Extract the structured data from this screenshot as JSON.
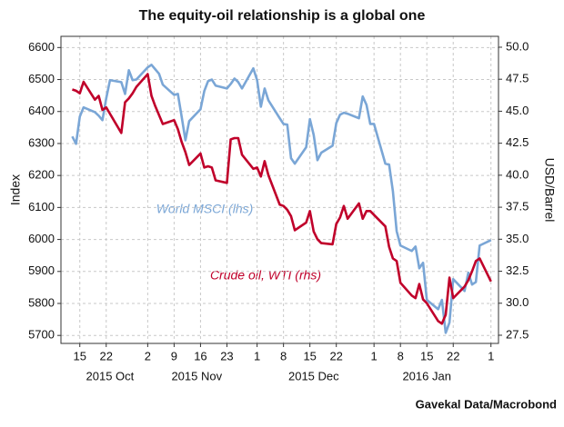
{
  "chart_data": {
    "type": "line",
    "title": "The equity-oil relationship is a global one",
    "ylabel": "Index",
    "y2label": "USD/Barrel",
    "source": "Gavekal Data/Macrobond",
    "annotations": [
      "World MSCI (lhs)",
      "Crude oil, WTI (rhs)"
    ],
    "grid": true,
    "x": [
      "2015-10-13",
      "2015-10-14",
      "2015-10-15",
      "2015-10-16",
      "2015-10-19",
      "2015-10-20",
      "2015-10-21",
      "2015-10-22",
      "2015-10-23",
      "2015-10-26",
      "2015-10-27",
      "2015-10-28",
      "2015-10-29",
      "2015-10-30",
      "2015-11-02",
      "2015-11-03",
      "2015-11-04",
      "2015-11-05",
      "2015-11-06",
      "2015-11-09",
      "2015-11-10",
      "2015-11-11",
      "2015-11-12",
      "2015-11-13",
      "2015-11-16",
      "2015-11-17",
      "2015-11-18",
      "2015-11-19",
      "2015-11-20",
      "2015-11-23",
      "2015-11-24",
      "2015-11-25",
      "2015-11-26",
      "2015-11-27",
      "2015-11-30",
      "2015-12-01",
      "2015-12-02",
      "2015-12-03",
      "2015-12-04",
      "2015-12-07",
      "2015-12-08",
      "2015-12-09",
      "2015-12-10",
      "2015-12-11",
      "2015-12-14",
      "2015-12-15",
      "2015-12-16",
      "2015-12-17",
      "2015-12-18",
      "2015-12-21",
      "2015-12-22",
      "2015-12-23",
      "2015-12-24",
      "2015-12-25",
      "2015-12-28",
      "2015-12-29",
      "2015-12-30",
      "2015-12-31",
      "2016-01-01",
      "2016-01-04",
      "2016-01-05",
      "2016-01-06",
      "2016-01-07",
      "2016-01-08",
      "2016-01-11",
      "2016-01-12",
      "2016-01-13",
      "2016-01-14",
      "2016-01-15",
      "2016-01-18",
      "2016-01-19",
      "2016-01-20",
      "2016-01-21",
      "2016-01-22",
      "2016-01-25",
      "2016-01-26",
      "2016-01-27",
      "2016-01-28",
      "2016-01-29",
      "2016-02-01"
    ],
    "series": [
      {
        "name": "World MSCI (lhs)",
        "color": "#7aa6d6",
        "axis": "y",
        "values": [
          6322,
          6299,
          6384,
          6413,
          6398,
          6387,
          6373,
          6441,
          6498,
          6492,
          6455,
          6529,
          6498,
          6500,
          6538,
          6546,
          6532,
          6518,
          6484,
          6452,
          6455,
          6384,
          6310,
          6370,
          6407,
          6464,
          6495,
          6500,
          6481,
          6472,
          6486,
          6503,
          6492,
          6472,
          6535,
          6498,
          6415,
          6472,
          6435,
          6379,
          6361,
          6359,
          6254,
          6237,
          6288,
          6376,
          6327,
          6248,
          6271,
          6293,
          6364,
          6390,
          6396,
          6393,
          6379,
          6447,
          6421,
          6361,
          6361,
          6237,
          6234,
          6151,
          6026,
          5981,
          5964,
          5978,
          5910,
          5927,
          5811,
          5782,
          5811,
          5708,
          5740,
          5876,
          5839,
          5896,
          5859,
          5867,
          5981,
          5998
        ]
      },
      {
        "name": "Crude oil, WTI (rhs)",
        "color": "#c0002a",
        "axis": "y2",
        "values": [
          46.7,
          46.6,
          46.4,
          47.3,
          45.9,
          46.2,
          45.1,
          45.3,
          44.8,
          43.3,
          45.7,
          46.0,
          46.4,
          46.9,
          47.9,
          46.2,
          45.4,
          44.7,
          44.0,
          44.3,
          43.6,
          42.6,
          41.8,
          40.8,
          41.7,
          40.6,
          40.7,
          40.6,
          39.6,
          39.4,
          42.8,
          42.9,
          42.9,
          41.6,
          40.5,
          40.6,
          39.9,
          41.1,
          40.0,
          37.7,
          37.6,
          37.3,
          36.8,
          35.7,
          36.3,
          37.2,
          35.6,
          35.0,
          34.7,
          34.6,
          36.2,
          36.7,
          37.6,
          36.6,
          37.8,
          36.6,
          37.2,
          37.2,
          36.9,
          36.0,
          34.4,
          33.5,
          33.3,
          31.6,
          30.6,
          30.4,
          31.5,
          30.3,
          30.0,
          28.6,
          28.4,
          29.1,
          32.0,
          30.4,
          31.3,
          31.8,
          32.5,
          33.3,
          33.5,
          31.7
        ]
      }
    ],
    "xlim": [
      "2015-10-10",
      "2016-02-03"
    ],
    "xticks": [
      {
        "value": "2015-10-15",
        "label": "15"
      },
      {
        "value": "2015-10-22",
        "label": "22"
      },
      {
        "value": "2015-11-02",
        "label": "2"
      },
      {
        "value": "2015-11-09",
        "label": "9"
      },
      {
        "value": "2015-11-16",
        "label": "16"
      },
      {
        "value": "2015-11-23",
        "label": "23"
      },
      {
        "value": "2015-12-01",
        "label": "1"
      },
      {
        "value": "2015-12-08",
        "label": "8"
      },
      {
        "value": "2015-12-15",
        "label": "15"
      },
      {
        "value": "2015-12-22",
        "label": "22"
      },
      {
        "value": "2016-01-01",
        "label": "1"
      },
      {
        "value": "2016-01-08",
        "label": "8"
      },
      {
        "value": "2016-01-15",
        "label": "15"
      },
      {
        "value": "2016-01-22",
        "label": "22"
      },
      {
        "value": "2016-02-01",
        "label": "1"
      }
    ],
    "month_labels": [
      {
        "value": "2015-10-23",
        "label": "2015 Oct"
      },
      {
        "value": "2015-11-15",
        "label": "2015 Nov"
      },
      {
        "value": "2015-12-16",
        "label": "2015 Dec"
      },
      {
        "value": "2016-01-15",
        "label": "2016 Jan"
      }
    ],
    "ylim": [
      5675,
      6635
    ],
    "yticks": [
      5700,
      5800,
      5900,
      6000,
      6100,
      6200,
      6300,
      6400,
      6500,
      6600
    ],
    "y2lim": [
      26.86,
      50.85
    ],
    "y2ticks": [
      27.5,
      {
        "value": 30,
        "label": "30.0"
      },
      32.5,
      {
        "value": 35,
        "label": "35.0"
      },
      37.5,
      {
        "value": 40,
        "label": "40.0"
      },
      42.5,
      {
        "value": 45,
        "label": "45.0"
      },
      47.5,
      {
        "value": 50,
        "label": "50.0"
      }
    ]
  }
}
